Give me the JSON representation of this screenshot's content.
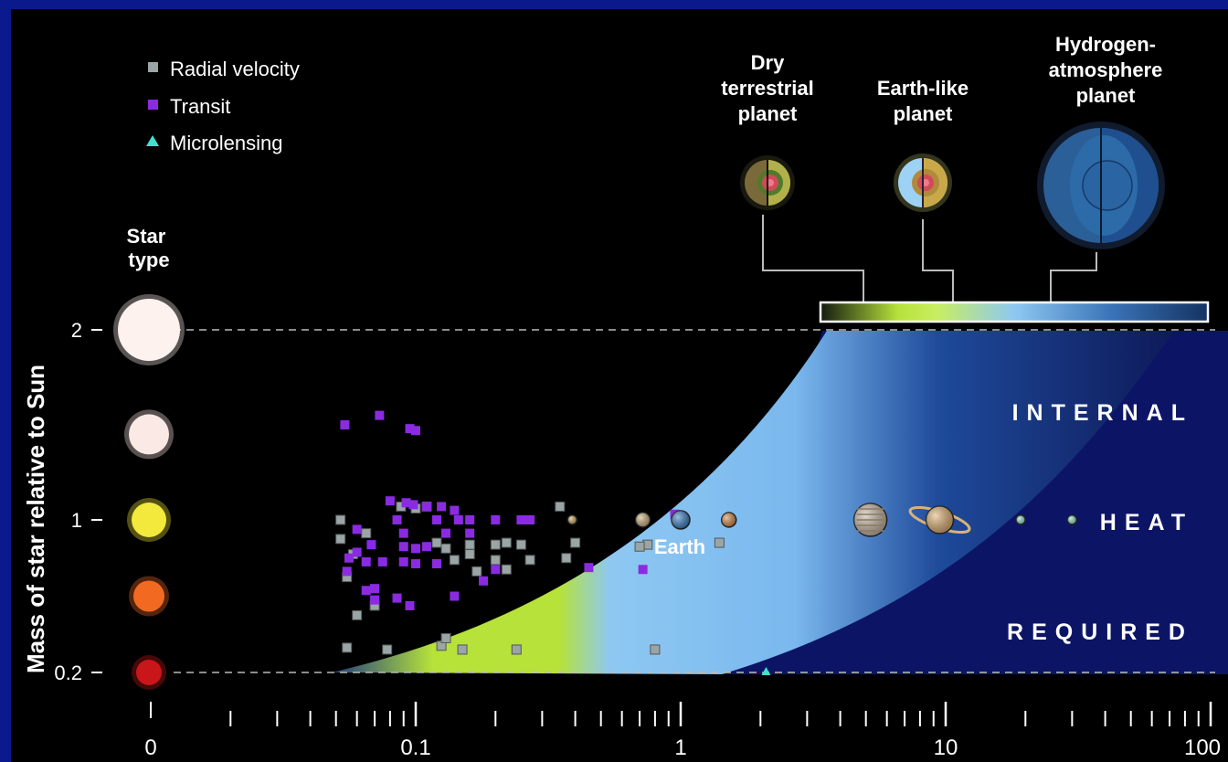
{
  "chart_data": {
    "type": "scatter",
    "title": "",
    "ylabel": "Mass of star relative to Sun",
    "xlabel": "",
    "x_scale": "log",
    "x_ticks": [
      "0",
      "0.1",
      "1",
      "10",
      "100"
    ],
    "y_ticks": [
      "0.2",
      "1",
      "2"
    ],
    "star_type_label": "Star type",
    "star_types": [
      {
        "mass": 2,
        "color": "#fdf2ee"
      },
      {
        "mass": 1.45,
        "color": "#fbe9e6"
      },
      {
        "mass": 1,
        "color": "#f3e93c"
      },
      {
        "mass": 0.6,
        "color": "#f26a22"
      },
      {
        "mass": 0.2,
        "color": "#c8161b"
      }
    ],
    "legend": [
      {
        "label": "Radial velocity",
        "marker": "square",
        "color": "#9aa6a6"
      },
      {
        "label": "Transit",
        "marker": "square",
        "color": "#8a2be2"
      },
      {
        "label": "Microlensing",
        "marker": "triangle",
        "color": "#40e0d0"
      }
    ],
    "planet_types": [
      {
        "label": "Dry terrestrial planet",
        "color": "#b6e23a"
      },
      {
        "label": "Earth-like planet",
        "color": "#8ec8f2"
      },
      {
        "label": "Hydrogen-atmosphere planet",
        "color": "#1f4f8e"
      }
    ],
    "region_text": [
      "INTERNAL",
      "HEAT",
      "REQUIRED"
    ],
    "earth_label": "Earth",
    "series": [
      {
        "name": "Radial velocity",
        "points": [
          [
            0.052,
            1.0
          ],
          [
            0.052,
            0.9
          ],
          [
            0.058,
            0.82
          ],
          [
            0.055,
            0.7
          ],
          [
            0.06,
            0.5
          ],
          [
            0.07,
            0.55
          ],
          [
            0.065,
            0.93
          ],
          [
            0.088,
            1.07
          ],
          [
            0.1,
            1.06
          ],
          [
            0.11,
            1.07
          ],
          [
            0.12,
            0.88
          ],
          [
            0.13,
            0.85
          ],
          [
            0.14,
            0.79
          ],
          [
            0.16,
            0.87
          ],
          [
            0.17,
            0.73
          ],
          [
            0.16,
            0.82
          ],
          [
            0.2,
            0.87
          ],
          [
            0.22,
            0.88
          ],
          [
            0.2,
            0.79
          ],
          [
            0.27,
            0.79
          ],
          [
            0.25,
            0.87
          ],
          [
            0.37,
            0.8
          ],
          [
            0.4,
            0.88
          ],
          [
            0.22,
            0.74
          ],
          [
            0.35,
            1.07
          ],
          [
            0.75,
            0.87
          ],
          [
            0.7,
            0.86
          ],
          [
            1.4,
            0.88
          ],
          [
            0.055,
            0.33
          ],
          [
            0.078,
            0.32
          ],
          [
            0.125,
            0.34
          ],
          [
            0.13,
            0.38
          ],
          [
            0.15,
            0.32
          ],
          [
            0.24,
            0.32
          ],
          [
            0.8,
            0.32
          ]
        ]
      },
      {
        "name": "Transit",
        "points": [
          [
            0.054,
            1.5
          ],
          [
            0.06,
            0.95
          ],
          [
            0.068,
            0.87
          ],
          [
            0.06,
            0.83
          ],
          [
            0.056,
            0.8
          ],
          [
            0.073,
            1.55
          ],
          [
            0.08,
            1.1
          ],
          [
            0.085,
            1.0
          ],
          [
            0.09,
            0.93
          ],
          [
            0.095,
            1.48
          ],
          [
            0.1,
            1.47
          ],
          [
            0.092,
            1.09
          ],
          [
            0.098,
            1.08
          ],
          [
            0.11,
            1.07
          ],
          [
            0.125,
            1.07
          ],
          [
            0.12,
            1.0
          ],
          [
            0.13,
            0.93
          ],
          [
            0.14,
            1.05
          ],
          [
            0.145,
            1.0
          ],
          [
            0.16,
            1.0
          ],
          [
            0.2,
            1.0
          ],
          [
            0.25,
            1.0
          ],
          [
            0.27,
            1.0
          ],
          [
            0.16,
            0.93
          ],
          [
            0.09,
            0.86
          ],
          [
            0.1,
            0.85
          ],
          [
            0.065,
            0.78
          ],
          [
            0.075,
            0.78
          ],
          [
            0.09,
            0.78
          ],
          [
            0.1,
            0.77
          ],
          [
            0.12,
            0.77
          ],
          [
            0.11,
            0.86
          ],
          [
            0.2,
            0.74
          ],
          [
            0.18,
            0.68
          ],
          [
            0.07,
            0.64
          ],
          [
            0.065,
            0.63
          ],
          [
            0.055,
            0.73
          ],
          [
            0.07,
            0.58
          ],
          [
            0.085,
            0.59
          ],
          [
            0.095,
            0.55
          ],
          [
            0.14,
            0.6
          ],
          [
            0.45,
            0.75
          ],
          [
            0.72,
            0.74
          ],
          [
            0.95,
            1.03
          ]
        ]
      },
      {
        "name": "Microlensing",
        "points": [
          [
            2.1,
            0.2
          ]
        ]
      }
    ],
    "solar_system": [
      {
        "name": "Mercury",
        "x": 0.39,
        "color": "#d9a75a"
      },
      {
        "name": "Venus",
        "x": 0.72,
        "color": "#c9b07a"
      },
      {
        "name": "Earth",
        "x": 1.0,
        "color": "#3a7fc4"
      },
      {
        "name": "Mars",
        "x": 1.52,
        "color": "#d48a4a"
      },
      {
        "name": "Jupiter",
        "x": 5.2,
        "color": "#c9b9a4"
      },
      {
        "name": "Saturn",
        "x": 9.5,
        "color": "#e0b070"
      },
      {
        "name": "Uranus",
        "x": 19.2,
        "color": "#8fe0c8"
      },
      {
        "name": "Neptune",
        "x": 30.0,
        "color": "#8fe0c8"
      }
    ]
  }
}
